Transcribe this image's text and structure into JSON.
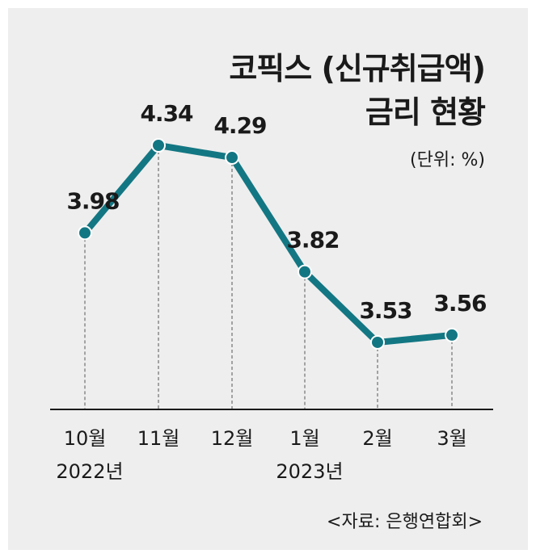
{
  "chart_data": {
    "type": "line",
    "title": [
      "코픽스 (신규취급액)",
      "금리 현황"
    ],
    "unit_label": "(단위: %)",
    "source": "<자료: 은행연합회>",
    "categories": [
      "10월",
      "11월",
      "12월",
      "1월",
      "2월",
      "3월"
    ],
    "year_labels": [
      "2022년",
      "",
      "",
      "2023년",
      "",
      ""
    ],
    "values": [
      3.98,
      4.34,
      4.29,
      3.82,
      3.53,
      3.56
    ],
    "data_labels": [
      "3.98",
      "4.34",
      "4.29",
      "3.82",
      "3.53",
      "3.56"
    ],
    "ylim": [
      3.5,
      4.34
    ],
    "grid": false,
    "colors": {
      "line": "#137783",
      "background": "#eeeeee",
      "text": "#1a1a1a"
    }
  }
}
